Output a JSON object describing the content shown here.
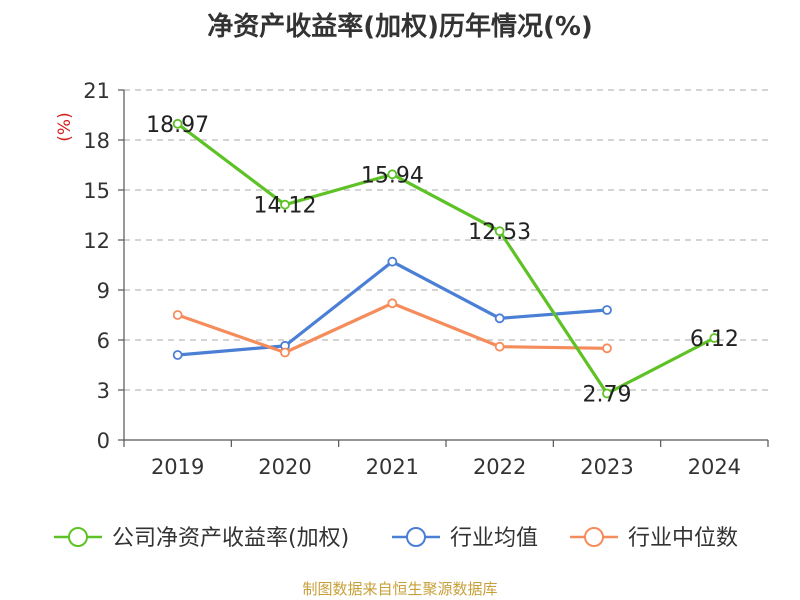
{
  "chart_data": {
    "type": "line",
    "title": "净资产收益率(加权)历年情况(%)",
    "ylabel": "(%)",
    "xlabel": "",
    "categories": [
      "2019",
      "2020",
      "2021",
      "2022",
      "2023",
      "2024"
    ],
    "ylim": [
      0,
      21
    ],
    "yticks": [
      0,
      3,
      6,
      9,
      12,
      15,
      18,
      21
    ],
    "grid": true,
    "legend_position": "bottom",
    "series": [
      {
        "name": "公司净资产收益率(加权)",
        "color": "#5ec226",
        "values": [
          18.97,
          14.12,
          15.94,
          12.53,
          2.79,
          6.12
        ],
        "labels": [
          "18.97",
          "14.12",
          "15.94",
          "12.53",
          "2.79",
          "6.12"
        ]
      },
      {
        "name": "行业均值",
        "color": "#4b7fd6",
        "values": [
          5.1,
          5.65,
          10.7,
          7.3,
          7.8,
          null
        ]
      },
      {
        "name": "行业中位数",
        "color": "#f58c5c",
        "values": [
          7.5,
          5.25,
          8.2,
          5.6,
          5.5,
          null
        ]
      }
    ],
    "source": "制图数据来自恒生聚源数据库"
  }
}
